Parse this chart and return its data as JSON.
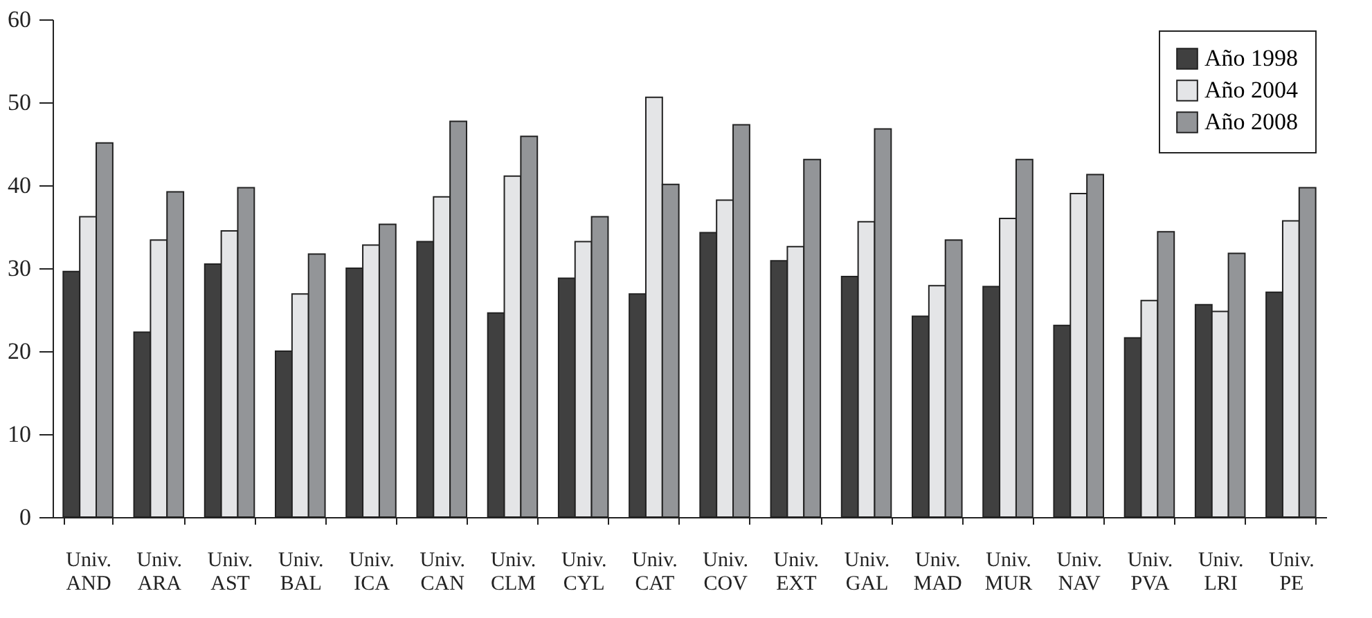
{
  "chart_data": {
    "type": "bar",
    "categories": [
      "Univ. AND",
      "Univ. ARA",
      "Univ. AST",
      "Univ. BAL",
      "Univ. ICA",
      "Univ. CAN",
      "Univ. CLM",
      "Univ. CYL",
      "Univ. CAT",
      "Univ. COV",
      "Univ. EXT",
      "Univ. GAL",
      "Univ. MAD",
      "Univ. MUR",
      "Univ. NAV",
      "Univ. PVA",
      "Univ. LRI",
      "Univ. PE"
    ],
    "series": [
      {
        "name": "Año 1998",
        "color": "#404040",
        "values": [
          29.6,
          22.3,
          30.5,
          20.0,
          30.0,
          33.2,
          24.6,
          28.8,
          26.9,
          34.3,
          30.9,
          29.0,
          24.2,
          27.8,
          23.1,
          21.6,
          25.6,
          27.1
        ]
      },
      {
        "name": "Año 2004",
        "color": "#e4e5e7",
        "values": [
          36.2,
          33.4,
          34.5,
          26.9,
          32.8,
          38.6,
          41.1,
          33.2,
          50.6,
          38.2,
          32.6,
          35.6,
          27.9,
          36.0,
          39.0,
          26.1,
          24.8,
          35.7
        ]
      },
      {
        "name": "Año 2008",
        "color": "#939598",
        "values": [
          45.1,
          39.2,
          39.7,
          31.7,
          35.3,
          47.7,
          45.9,
          36.2,
          40.1,
          47.3,
          43.1,
          46.8,
          33.4,
          43.1,
          41.3,
          34.4,
          31.8,
          39.7
        ]
      }
    ],
    "ylim": [
      0,
      60
    ],
    "yticks": [
      0,
      10,
      20,
      30,
      40,
      50,
      60
    ],
    "grid": false,
    "legend": "top right"
  }
}
